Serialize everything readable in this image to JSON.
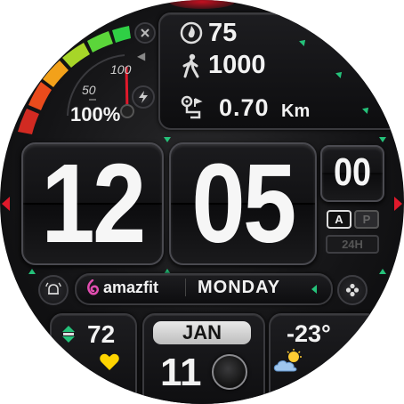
{
  "stats": {
    "calories": "75",
    "steps": "1000",
    "distance": "0.70",
    "distance_unit": "Km"
  },
  "battery": {
    "percent_label": "100%",
    "gauge_label_50": "50",
    "gauge_label_100": "100",
    "level": 1.0
  },
  "time": {
    "hours": "12",
    "minutes": "05",
    "seconds": "00",
    "am_label": "A",
    "pm_label": "P",
    "format_label": "24H"
  },
  "brand": {
    "logo_text": "amazfit"
  },
  "date": {
    "weekday": "MONDAY",
    "month": "JAN",
    "day": "11"
  },
  "health": {
    "heart_rate": "72"
  },
  "weather": {
    "temperature": "-23°"
  },
  "colors": {
    "accent_green": "#25c27a",
    "accent_red": "#e0192b",
    "heart_yellow": "#ffd400",
    "gauge_high": "#45d24a",
    "gauge_low": "#e0382a"
  }
}
